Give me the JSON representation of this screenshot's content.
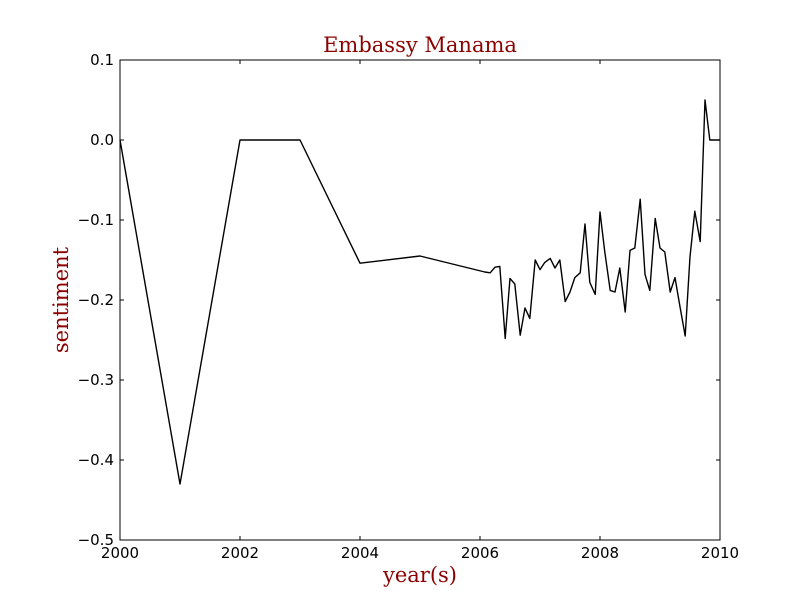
{
  "chart_data": {
    "type": "line",
    "title": "Embassy Manama",
    "xlabel": "year(s)",
    "ylabel": "sentiment",
    "xlim": [
      2000,
      2010
    ],
    "ylim": [
      -0.5,
      0.1
    ],
    "xticks": [
      2000,
      2002,
      2004,
      2006,
      2008,
      2010
    ],
    "yticks": [
      0.1,
      0.0,
      -0.1,
      -0.2,
      -0.3,
      -0.4,
      -0.5
    ],
    "xtick_labels": [
      "2000",
      "2002",
      "2004",
      "2006",
      "2008",
      "2010"
    ],
    "ytick_labels": [
      "0.1",
      "0.0",
      "−0.1",
      "−0.2",
      "−0.3",
      "−0.4",
      "−0.5"
    ],
    "grid": false,
    "legend": "none",
    "label_color": "#8b0000",
    "line_color": "#000000",
    "series": [
      {
        "x": [
          2000.0,
          2001.0,
          2002.0,
          2003.0,
          2004.0,
          2005.0,
          2006.08,
          2006.17,
          2006.25,
          2006.33,
          2006.42,
          2006.5,
          2006.58,
          2006.67,
          2006.75,
          2006.83,
          2006.92,
          2007.0,
          2007.08,
          2007.17,
          2007.25,
          2007.33,
          2007.42,
          2007.5,
          2007.58,
          2007.67,
          2007.75,
          2007.83,
          2007.92,
          2008.0,
          2008.08,
          2008.17,
          2008.25,
          2008.33,
          2008.42,
          2008.5,
          2008.58,
          2008.67,
          2008.75,
          2008.83,
          2008.92,
          2009.0,
          2009.08,
          2009.17,
          2009.25,
          2009.33,
          2009.42,
          2009.5,
          2009.58,
          2009.67,
          2009.75,
          2009.83,
          2009.92,
          2010.0
        ],
        "y": [
          0.0,
          -0.43,
          0.0,
          0.0,
          -0.154,
          -0.145,
          -0.165,
          -0.166,
          -0.159,
          -0.158,
          -0.248,
          -0.173,
          -0.18,
          -0.244,
          -0.21,
          -0.223,
          -0.15,
          -0.162,
          -0.153,
          -0.148,
          -0.16,
          -0.15,
          -0.202,
          -0.19,
          -0.172,
          -0.166,
          -0.105,
          -0.178,
          -0.193,
          -0.09,
          -0.14,
          -0.188,
          -0.19,
          -0.16,
          -0.215,
          -0.138,
          -0.135,
          -0.074,
          -0.168,
          -0.188,
          -0.098,
          -0.135,
          -0.14,
          -0.19,
          -0.172,
          -0.207,
          -0.245,
          -0.146,
          -0.089,
          -0.127,
          0.05,
          0.0,
          0.0,
          0.0
        ]
      }
    ]
  }
}
